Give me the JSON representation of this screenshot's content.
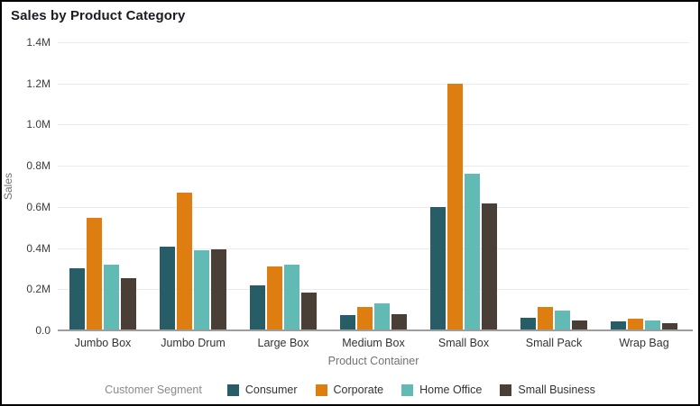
{
  "title": "Sales by Product Category",
  "chart_data": {
    "type": "bar",
    "title": "Sales by Product Category",
    "xlabel": "Product Container",
    "ylabel": "Sales",
    "ylim": [
      0,
      1.4
    ],
    "grid": true,
    "legend_title": "Customer Segment",
    "legend_position": "bottom",
    "yticks": [
      {
        "value": 0.0,
        "label": "0.0"
      },
      {
        "value": 0.2,
        "label": "0.2M"
      },
      {
        "value": 0.4,
        "label": "0.4M"
      },
      {
        "value": 0.6,
        "label": "0.6M"
      },
      {
        "value": 0.8,
        "label": "0.8M"
      },
      {
        "value": 1.0,
        "label": "1.0M"
      },
      {
        "value": 1.2,
        "label": "1.2M"
      },
      {
        "value": 1.4,
        "label": "1.4M"
      }
    ],
    "categories": [
      "Jumbo Box",
      "Jumbo Drum",
      "Large Box",
      "Medium Box",
      "Small Box",
      "Small Pack",
      "Wrap Bag"
    ],
    "series": [
      {
        "name": "Consumer",
        "color": "#265d66",
        "values": [
          0.3,
          0.405,
          0.22,
          0.075,
          0.6,
          0.06,
          0.045
        ]
      },
      {
        "name": "Corporate",
        "color": "#de7e10",
        "values": [
          0.545,
          0.67,
          0.31,
          0.115,
          1.2,
          0.115,
          0.055
        ]
      },
      {
        "name": "Home Office",
        "color": "#62bab4",
        "values": [
          0.32,
          0.39,
          0.32,
          0.13,
          0.76,
          0.095,
          0.05
        ]
      },
      {
        "name": "Small Business",
        "color": "#4a3f37",
        "values": [
          0.255,
          0.395,
          0.185,
          0.08,
          0.615,
          0.05,
          0.035
        ]
      }
    ]
  }
}
